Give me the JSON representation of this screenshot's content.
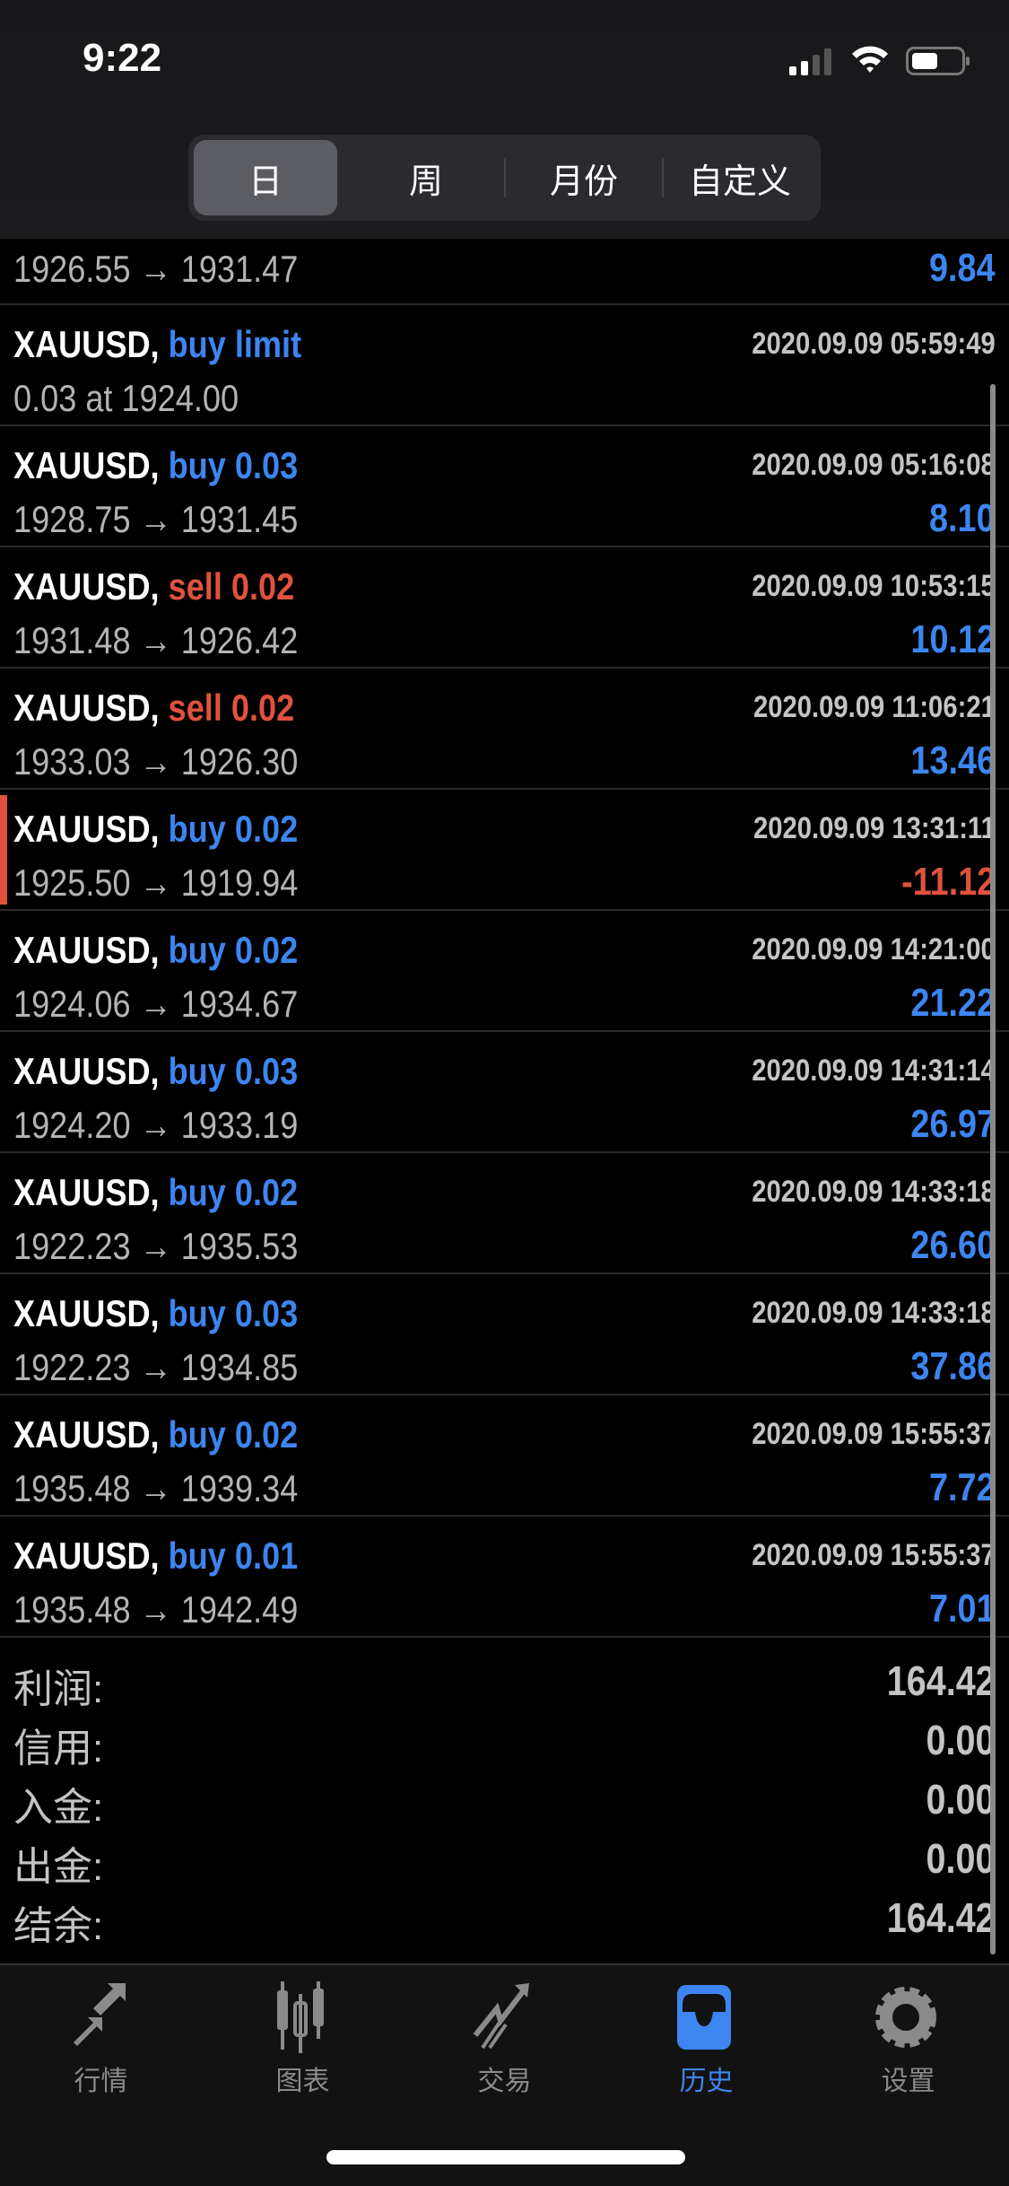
{
  "status_bar": {
    "time": "9:22"
  },
  "segments": [
    {
      "label": "日",
      "active": true
    },
    {
      "label": "周"
    },
    {
      "label": "月份"
    },
    {
      "label": "自定义"
    }
  ],
  "partial_row": {
    "prices": "1926.55 → 1931.47",
    "profit": "9.84"
  },
  "rows": [
    {
      "symbol": "XAUUSD,",
      "type": "buy limit",
      "side": "buy",
      "time": "2020.09.09 05:59:49",
      "prices": "0.03 at 1924.00",
      "profit": ""
    },
    {
      "symbol": "XAUUSD,",
      "type": "buy 0.03",
      "side": "buy",
      "time": "2020.09.09 05:16:08",
      "prices": "1928.75 → 1931.45",
      "profit": "8.10"
    },
    {
      "symbol": "XAUUSD,",
      "type": "sell 0.02",
      "side": "sell",
      "time": "2020.09.09 10:53:15",
      "prices": "1931.48 → 1926.42",
      "profit": "10.12"
    },
    {
      "symbol": "XAUUSD,",
      "type": "sell 0.02",
      "side": "sell",
      "time": "2020.09.09 11:06:21",
      "prices": "1933.03 → 1926.30",
      "profit": "13.46"
    },
    {
      "symbol": "XAUUSD,",
      "type": "buy 0.02",
      "side": "buy",
      "time": "2020.09.09 13:31:11",
      "prices": "1925.50 → 1919.94",
      "profit": "-11.12",
      "loss": true
    },
    {
      "symbol": "XAUUSD,",
      "type": "buy 0.02",
      "side": "buy",
      "time": "2020.09.09 14:21:00",
      "prices": "1924.06 → 1934.67",
      "profit": "21.22"
    },
    {
      "symbol": "XAUUSD,",
      "type": "buy 0.03",
      "side": "buy",
      "time": "2020.09.09 14:31:14",
      "prices": "1924.20 → 1933.19",
      "profit": "26.97"
    },
    {
      "symbol": "XAUUSD,",
      "type": "buy 0.02",
      "side": "buy",
      "time": "2020.09.09 14:33:18",
      "prices": "1922.23 → 1935.53",
      "profit": "26.60"
    },
    {
      "symbol": "XAUUSD,",
      "type": "buy 0.03",
      "side": "buy",
      "time": "2020.09.09 14:33:18",
      "prices": "1922.23 → 1934.85",
      "profit": "37.86"
    },
    {
      "symbol": "XAUUSD,",
      "type": "buy 0.02",
      "side": "buy",
      "time": "2020.09.09 15:55:37",
      "prices": "1935.48 → 1939.34",
      "profit": "7.72"
    },
    {
      "symbol": "XAUUSD,",
      "type": "buy 0.01",
      "side": "buy",
      "time": "2020.09.09 15:55:37",
      "prices": "1935.48 → 1942.49",
      "profit": "7.01"
    }
  ],
  "totals": [
    {
      "label": "利润:",
      "value": "164.42"
    },
    {
      "label": "信用:",
      "value": "0.00"
    },
    {
      "label": "入金:",
      "value": "0.00"
    },
    {
      "label": "出金:",
      "value": "0.00"
    },
    {
      "label": "结余:",
      "value": "164.42"
    }
  ],
  "tabs": [
    {
      "label": "行情",
      "icon": "quotes-arrows-icon"
    },
    {
      "label": "图表",
      "icon": "candlestick-chart-icon"
    },
    {
      "label": "交易",
      "icon": "trade-trend-icon"
    },
    {
      "label": "历史",
      "icon": "history-inbox-icon",
      "active": true
    },
    {
      "label": "设置",
      "icon": "settings-gear-icon"
    }
  ],
  "colors": {
    "buy": "#3d85f0",
    "sell": "#e0523e",
    "profit": "#3d85f0",
    "loss": "#e0523e",
    "active_tab": "#3d85f0",
    "inactive_tab": "#8a8a8a"
  }
}
